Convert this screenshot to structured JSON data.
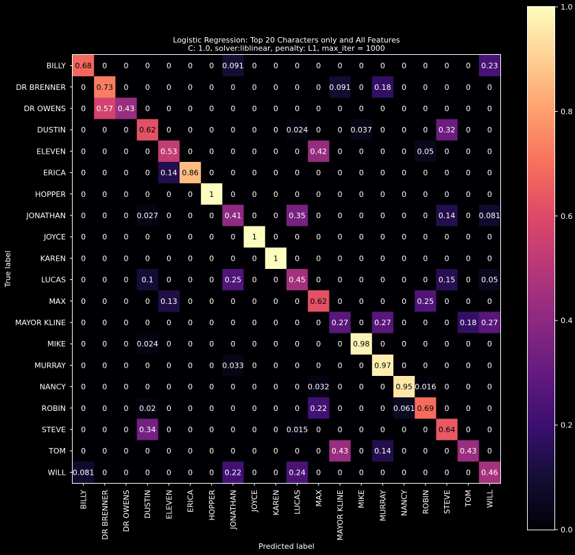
{
  "chart_data": {
    "type": "heatmap",
    "title": "Logistic Regression: Top 20 Characters only and All Features",
    "subtitle": "C: 1.0, solver:liblinear, penalty: L1, max_iter = 1000",
    "xlabel": "Predicted label",
    "ylabel": "True label",
    "labels": [
      "BILLY",
      "DR BRENNER",
      "DR OWENS",
      "DUSTIN",
      "ELEVEN",
      "ERICA",
      "HOPPER",
      "JONATHAN",
      "JOYCE",
      "KAREN",
      "LUCAS",
      "MAX",
      "MAYOR KLINE",
      "MIKE",
      "MURRAY",
      "NANCY",
      "ROBIN",
      "STEVE",
      "TOM",
      "WILL"
    ],
    "matrix": [
      [
        "0.68",
        "0",
        "0",
        "0",
        "0",
        "0",
        "0",
        "0.091",
        "0",
        "0",
        "0",
        "0",
        "0",
        "0",
        "0",
        "0",
        "0",
        "0",
        "0",
        "0.23"
      ],
      [
        "0",
        "0.73",
        "0",
        "0",
        "0",
        "0",
        "0",
        "0",
        "0",
        "0",
        "0",
        "0",
        "0.091",
        "0",
        "0.18",
        "0",
        "0",
        "0",
        "0",
        "0"
      ],
      [
        "0",
        "0.57",
        "0.43",
        "0",
        "0",
        "0",
        "0",
        "0",
        "0",
        "0",
        "0",
        "0",
        "0",
        "0",
        "0",
        "0",
        "0",
        "0",
        "0",
        "0"
      ],
      [
        "0",
        "0",
        "0",
        "0.62",
        "0",
        "0",
        "0",
        "0",
        "0",
        "0",
        "0.024",
        "0",
        "0",
        "0.037",
        "0",
        "0",
        "0",
        "0.32",
        "0",
        "0"
      ],
      [
        "0",
        "0",
        "0",
        "0",
        "0.53",
        "0",
        "0",
        "0",
        "0",
        "0",
        "0",
        "0.42",
        "0",
        "0",
        "0",
        "0",
        "0.05",
        "0",
        "0",
        "0"
      ],
      [
        "0",
        "0",
        "0",
        "0",
        "0.14",
        "0.86",
        "0",
        "0",
        "0",
        "0",
        "0",
        "0",
        "0",
        "0",
        "0",
        "0",
        "0",
        "0",
        "0",
        "0"
      ],
      [
        "0",
        "0",
        "0",
        "0",
        "0",
        "0",
        "1",
        "0",
        "0",
        "0",
        "0",
        "0",
        "0",
        "0",
        "0",
        "0",
        "0",
        "0",
        "0",
        "0"
      ],
      [
        "0",
        "0",
        "0",
        "0.027",
        "0",
        "0",
        "0",
        "0.41",
        "0",
        "0",
        "0.35",
        "0",
        "0",
        "0",
        "0",
        "0",
        "0",
        "0.14",
        "0",
        "0.081"
      ],
      [
        "0",
        "0",
        "0",
        "0",
        "0",
        "0",
        "0",
        "0",
        "1",
        "0",
        "0",
        "0",
        "0",
        "0",
        "0",
        "0",
        "0",
        "0",
        "0",
        "0"
      ],
      [
        "0",
        "0",
        "0",
        "0",
        "0",
        "0",
        "0",
        "0",
        "0",
        "1",
        "0",
        "0",
        "0",
        "0",
        "0",
        "0",
        "0",
        "0",
        "0",
        "0"
      ],
      [
        "0",
        "0",
        "0",
        "0.1",
        "0",
        "0",
        "0",
        "0.25",
        "0",
        "0",
        "0.45",
        "0",
        "0",
        "0",
        "0",
        "0",
        "0",
        "0.15",
        "0",
        "0.05"
      ],
      [
        "0",
        "0",
        "0",
        "0",
        "0.13",
        "0",
        "0",
        "0",
        "0",
        "0",
        "0",
        "0.62",
        "0",
        "0",
        "0",
        "0",
        "0.25",
        "0",
        "0",
        "0"
      ],
      [
        "0",
        "0",
        "0",
        "0",
        "0",
        "0",
        "0",
        "0",
        "0",
        "0",
        "0",
        "0",
        "0.27",
        "0",
        "0.27",
        "0",
        "0",
        "0",
        "0.18",
        "0.27"
      ],
      [
        "0",
        "0",
        "0",
        "0.024",
        "0",
        "0",
        "0",
        "0",
        "0",
        "0",
        "0",
        "0",
        "0",
        "0.98",
        "0",
        "0",
        "0",
        "0",
        "0",
        "0"
      ],
      [
        "0",
        "0",
        "0",
        "0",
        "0",
        "0",
        "0",
        "0.033",
        "0",
        "0",
        "0",
        "0",
        "0",
        "0",
        "0.97",
        "0",
        "0",
        "0",
        "0",
        "0"
      ],
      [
        "0",
        "0",
        "0",
        "0",
        "0",
        "0",
        "0",
        "0",
        "0",
        "0",
        "0",
        "0.032",
        "0",
        "0",
        "0",
        "0.95",
        "0.016",
        "0",
        "0",
        "0"
      ],
      [
        "0",
        "0",
        "0",
        "0.02",
        "0",
        "0",
        "0",
        "0",
        "0",
        "0",
        "0",
        "0.22",
        "0",
        "0",
        "0",
        "0.061",
        "0.69",
        "0",
        "0",
        "0"
      ],
      [
        "0",
        "0",
        "0",
        "0.34",
        "0",
        "0",
        "0",
        "0",
        "0",
        "0",
        "0.015",
        "0",
        "0",
        "0",
        "0",
        "0",
        "0",
        "0.64",
        "0",
        "0"
      ],
      [
        "0",
        "0",
        "0",
        "0",
        "0",
        "0",
        "0",
        "0",
        "0",
        "0",
        "0",
        "0",
        "0.43",
        "0",
        "0.14",
        "0",
        "0",
        "0",
        "0.43",
        "0"
      ],
      [
        "0.081",
        "0",
        "0",
        "0",
        "0",
        "0",
        "0",
        "0.22",
        "0",
        "0",
        "0.24",
        "0",
        "0",
        "0",
        "0",
        "0",
        "0",
        "0",
        "0",
        "0.46"
      ]
    ],
    "colormap": "magma",
    "vmin": 0,
    "vmax": 1,
    "colorbar_ticks": [
      "0.0",
      "0.2",
      "0.4",
      "0.6",
      "0.8",
      "1.0"
    ],
    "grid": false,
    "colorbar_placement": "right"
  }
}
